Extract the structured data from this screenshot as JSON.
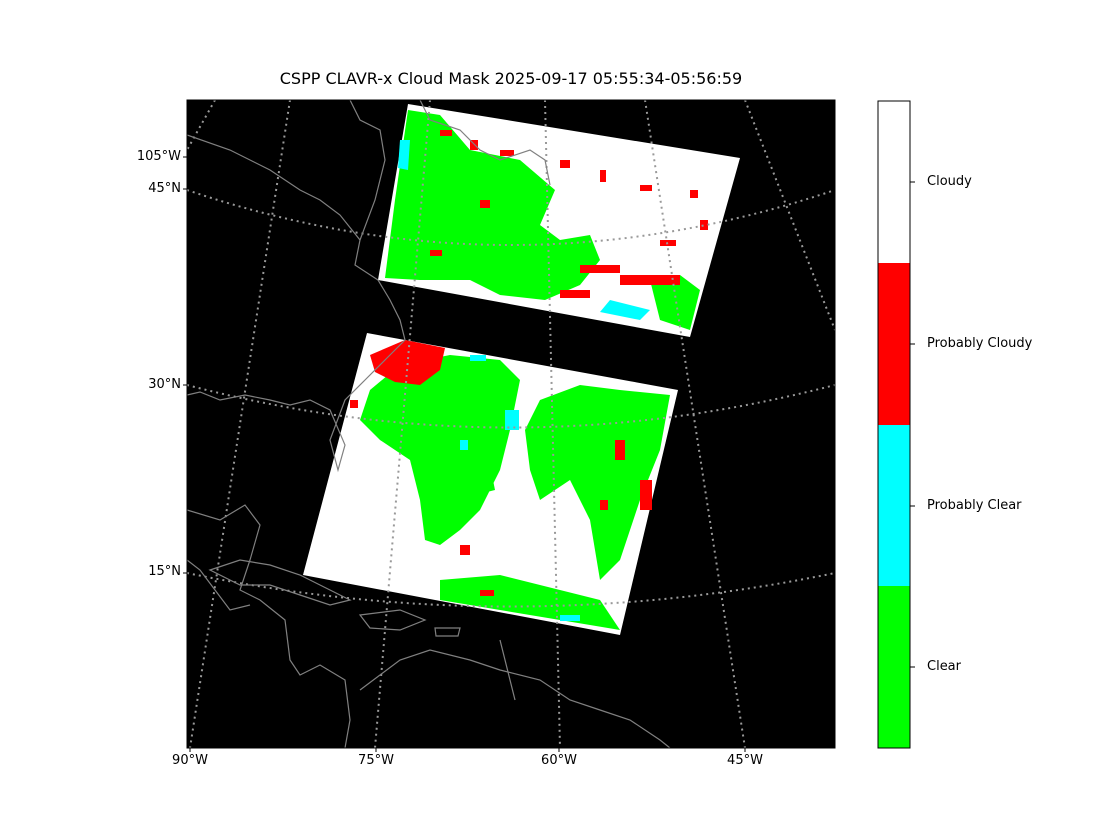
{
  "title": "CSPP CLAVR-x Cloud Mask 2025-09-17 05:55:34-05:56:59",
  "latitude_labels": [
    "105°W",
    "45°N",
    "30°N",
    "15°N"
  ],
  "longitude_labels": [
    "90°W",
    "75°W",
    "60°W",
    "45°W"
  ],
  "colorbar": {
    "categories": [
      {
        "label": "Cloudy",
        "color": "#ffffff"
      },
      {
        "label": "Probably Cloudy",
        "color": "#ff0000"
      },
      {
        "label": "Probably Clear",
        "color": "#00ffff"
      },
      {
        "label": "Clear",
        "color": "#00ff00"
      }
    ]
  },
  "colors": {
    "background": "#000000",
    "coastline": "#808080",
    "graticule": "#999999"
  }
}
